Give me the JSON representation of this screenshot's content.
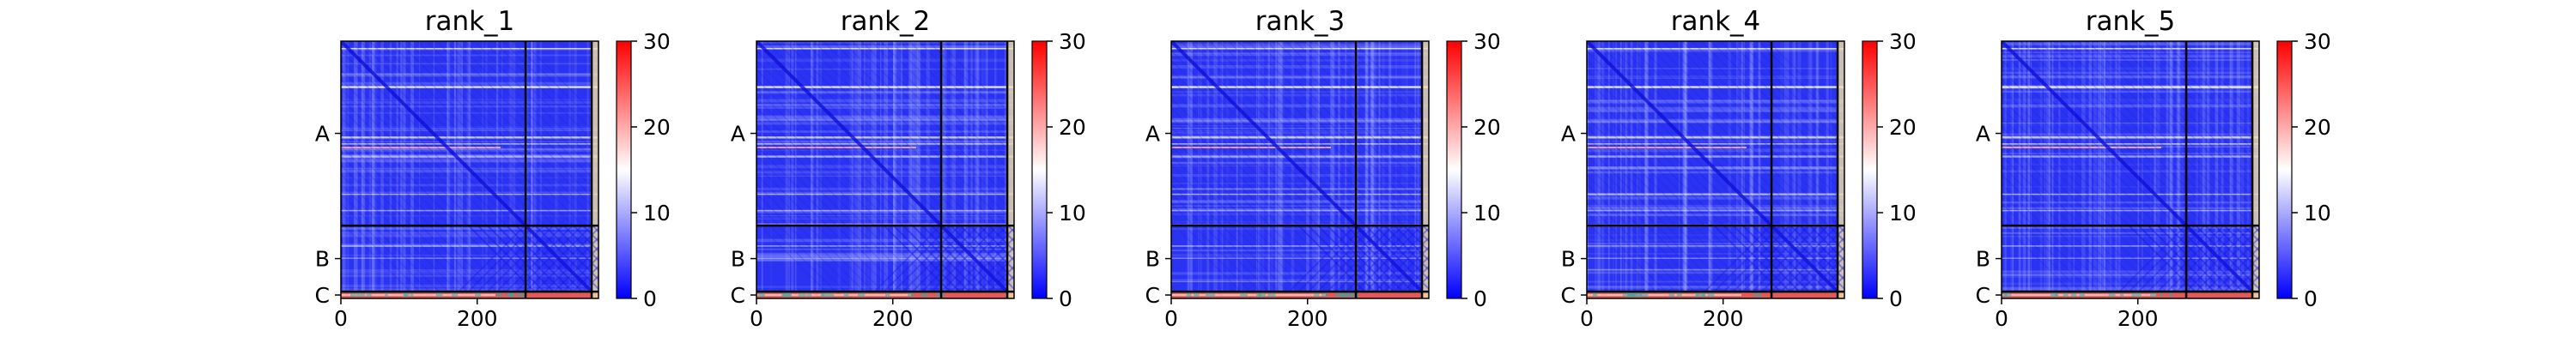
{
  "chart_data": [
    {
      "type": "heatmap",
      "title": "rank_1",
      "x_ticks": [
        "0",
        "200"
      ],
      "y_ticks": [
        "A",
        "B",
        "C"
      ],
      "x_range": [
        0,
        378
      ],
      "chains": [
        {
          "name": "A",
          "length": 271
        },
        {
          "name": "B",
          "length": 97
        },
        {
          "name": "C",
          "length": 10
        }
      ],
      "colorbar": {
        "min": 0,
        "max": 30,
        "ticks": [
          "0",
          "10",
          "20",
          "30"
        ],
        "colors": [
          "#0000ff",
          "#ffffff",
          "#ff0000"
        ]
      }
    },
    {
      "type": "heatmap",
      "title": "rank_2",
      "x_ticks": [
        "0",
        "200"
      ],
      "y_ticks": [
        "A",
        "B",
        "C"
      ],
      "x_range": [
        0,
        378
      ],
      "chains": [
        {
          "name": "A",
          "length": 271
        },
        {
          "name": "B",
          "length": 97
        },
        {
          "name": "C",
          "length": 10
        }
      ],
      "colorbar": {
        "min": 0,
        "max": 30,
        "ticks": [
          "0",
          "10",
          "20",
          "30"
        ],
        "colors": [
          "#0000ff",
          "#ffffff",
          "#ff0000"
        ]
      }
    },
    {
      "type": "heatmap",
      "title": "rank_3",
      "x_ticks": [
        "0",
        "200"
      ],
      "y_ticks": [
        "A",
        "B",
        "C"
      ],
      "x_range": [
        0,
        378
      ],
      "chains": [
        {
          "name": "A",
          "length": 271
        },
        {
          "name": "B",
          "length": 97
        },
        {
          "name": "C",
          "length": 10
        }
      ],
      "colorbar": {
        "min": 0,
        "max": 30,
        "ticks": [
          "0",
          "10",
          "20",
          "30"
        ],
        "colors": [
          "#0000ff",
          "#ffffff",
          "#ff0000"
        ]
      }
    },
    {
      "type": "heatmap",
      "title": "rank_4",
      "x_ticks": [
        "0",
        "200"
      ],
      "y_ticks": [
        "A",
        "B",
        "C"
      ],
      "x_range": [
        0,
        378
      ],
      "chains": [
        {
          "name": "A",
          "length": 271
        },
        {
          "name": "B",
          "length": 97
        },
        {
          "name": "C",
          "length": 10
        }
      ],
      "colorbar": {
        "min": 0,
        "max": 30,
        "ticks": [
          "0",
          "10",
          "20",
          "30"
        ],
        "colors": [
          "#0000ff",
          "#ffffff",
          "#ff0000"
        ]
      }
    },
    {
      "type": "heatmap",
      "title": "rank_5",
      "x_ticks": [
        "0",
        "200"
      ],
      "y_ticks": [
        "A",
        "B",
        "C"
      ],
      "x_range": [
        0,
        378
      ],
      "chains": [
        {
          "name": "A",
          "length": 271
        },
        {
          "name": "B",
          "length": 97
        },
        {
          "name": "C",
          "length": 10
        }
      ],
      "colorbar": {
        "min": 0,
        "max": 30,
        "ticks": [
          "0",
          "10",
          "20",
          "30"
        ],
        "colors": [
          "#0000ff",
          "#ffffff",
          "#ff0000"
        ]
      }
    }
  ]
}
